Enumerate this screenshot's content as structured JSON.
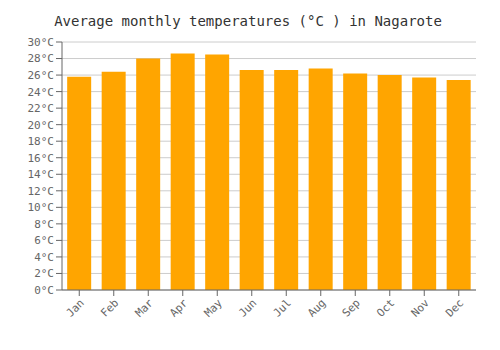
{
  "chart_data": {
    "type": "bar",
    "title": "Average monthly temperatures (°C ) in Nagarote",
    "categories": [
      "Jan",
      "Feb",
      "Mar",
      "Apr",
      "May",
      "Jun",
      "Jul",
      "Aug",
      "Sep",
      "Oct",
      "Nov",
      "Dec"
    ],
    "values": [
      25.8,
      26.4,
      28.0,
      28.6,
      28.5,
      26.6,
      26.6,
      26.8,
      26.2,
      26.0,
      25.7,
      25.4
    ],
    "color": "#FFA500",
    "ylim": [
      0,
      30
    ],
    "yticks": [
      {
        "value": 0,
        "label": "0°C"
      },
      {
        "value": 2,
        "label": "2°C"
      },
      {
        "value": 4,
        "label": "4°C"
      },
      {
        "value": 6,
        "label": "6°C"
      },
      {
        "value": 8,
        "label": "8°C"
      },
      {
        "value": 10,
        "label": "10°C"
      },
      {
        "value": 12,
        "label": "12°C"
      },
      {
        "value": 14,
        "label": "14°C"
      },
      {
        "value": 16,
        "label": "16°C"
      },
      {
        "value": 18,
        "label": "18°C"
      },
      {
        "value": 20,
        "label": "20°C"
      },
      {
        "value": 22,
        "label": "22°C"
      },
      {
        "value": 24,
        "label": "24°C"
      },
      {
        "value": 26,
        "label": "26°C"
      },
      {
        "value": 28,
        "label": "28°C"
      },
      {
        "value": 30,
        "label": "30°C"
      }
    ],
    "grid": true
  }
}
